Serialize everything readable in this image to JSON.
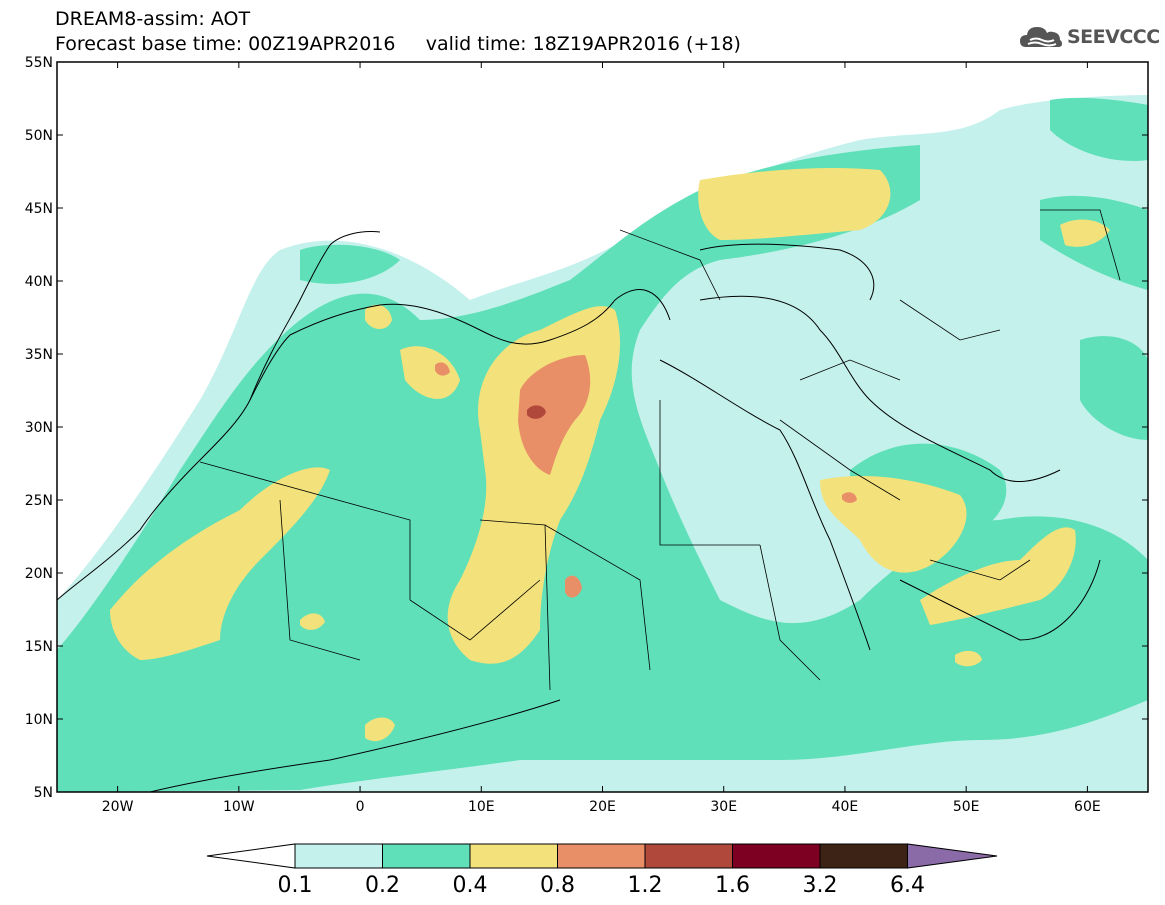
{
  "header": {
    "line1": "DREAM8-assim: AOT",
    "line2": "Forecast base time: 00Z19APR2016     valid time: 18Z19APR2016 (+18)"
  },
  "logo": {
    "text": "SEEVCCC",
    "icon": "cloud-icon"
  },
  "map": {
    "lon_range": [
      -25,
      65
    ],
    "lat_range": [
      5,
      55
    ],
    "lat_ticks": [
      "55N",
      "50N",
      "45N",
      "40N",
      "35N",
      "30N",
      "25N",
      "20N",
      "15N",
      "10N",
      "5N"
    ],
    "lon_ticks": [
      "20W",
      "10W",
      "0",
      "10E",
      "20E",
      "30E",
      "40E",
      "50E",
      "60E"
    ],
    "colors": {
      "c1": "#c4f1ec",
      "c2": "#5fe0b8",
      "c3": "#f3e27b",
      "c4": "#e98f68",
      "c5": "#b1483c"
    }
  },
  "colorbar": {
    "labels": [
      "0.1",
      "0.2",
      "0.4",
      "0.8",
      "1.2",
      "1.6",
      "3.2",
      "6.4"
    ],
    "colors": [
      "#ffffff",
      "#c4f1ec",
      "#5fe0b8",
      "#f3e27b",
      "#e98f68",
      "#b1483c",
      "#7d0022",
      "#3c2316",
      "#8b6aa8"
    ]
  }
}
